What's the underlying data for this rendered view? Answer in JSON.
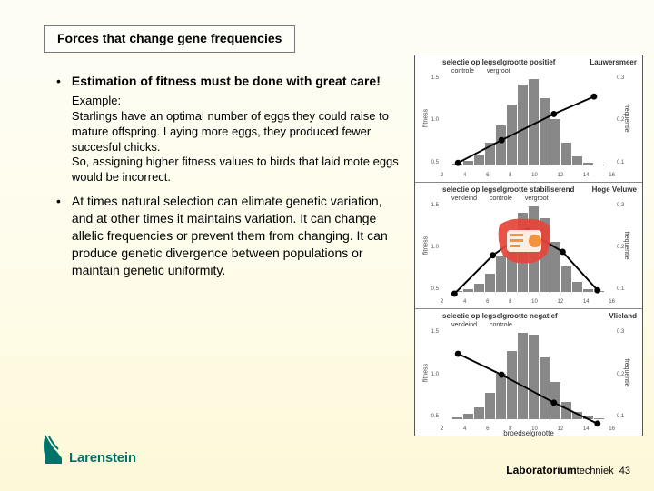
{
  "title": "Forces that change gene frequencies",
  "bullets": [
    {
      "heading": "Estimation of fitness must be done with great care!",
      "example": "Example:\nStarlings have an optimal number of eggs they could raise to mature offspring. Laying more eggs, they produced fewer succesful chicks.\nSo, assigning higher fitness values to birds that laid mote eggs would be incorrect."
    },
    {
      "body": "At times natural selection can elimate genetic variation, and at other times it maintains variation. It can change allelic frequencies or prevent them from changing. It can produce genetic divergence between populations or maintain genetic uniformity."
    }
  ],
  "charts": {
    "xaxis_title": "broedselgrootte",
    "xaxis_ticks": [
      "2",
      "4",
      "6",
      "8",
      "10",
      "12",
      "14",
      "16"
    ],
    "left_axis_label": "fitness",
    "right_axis_label": "frequentie",
    "left_scale": [
      "1.5",
      "1.0",
      "0.5"
    ],
    "right_scale": [
      "0.3",
      "0.2",
      "0.1"
    ],
    "legend": {
      "a": "controle",
      "b": "vergroot",
      "c": "verkleind"
    },
    "panels": [
      {
        "title": "selectie op legselgrootte positief",
        "location": "Lauwersmeer",
        "bars": [
          0,
          2,
          5,
          12,
          26,
          46,
          70,
          94,
          100,
          78,
          54,
          26,
          10,
          3,
          1,
          0
        ],
        "line_type": "up",
        "bar_color": "#8a8a8a"
      },
      {
        "title": "selectie op legselgrootte stabiliserend",
        "location": "Hoge Veluwe",
        "bars": [
          0,
          1,
          4,
          10,
          22,
          42,
          68,
          92,
          100,
          86,
          58,
          30,
          12,
          4,
          1,
          0
        ],
        "line_type": "peak",
        "bar_color": "#8a8a8a"
      },
      {
        "title": "selectie op legselgrootte negatief",
        "location": "Vlieland",
        "bars": [
          0,
          2,
          6,
          14,
          30,
          52,
          78,
          98,
          96,
          70,
          42,
          20,
          8,
          3,
          1,
          0
        ],
        "line_type": "down",
        "bar_color": "#8a8a8a"
      }
    ]
  },
  "logo_text": "Larenstein",
  "footer_bold": "Laboratorium",
  "footer_light": "techniek",
  "footer_page": "43",
  "colors": {
    "brand": "#00746b",
    "badge_red": "#e4443a",
    "badge_orange": "#f5923e",
    "badge_inner": "#fceee0"
  }
}
